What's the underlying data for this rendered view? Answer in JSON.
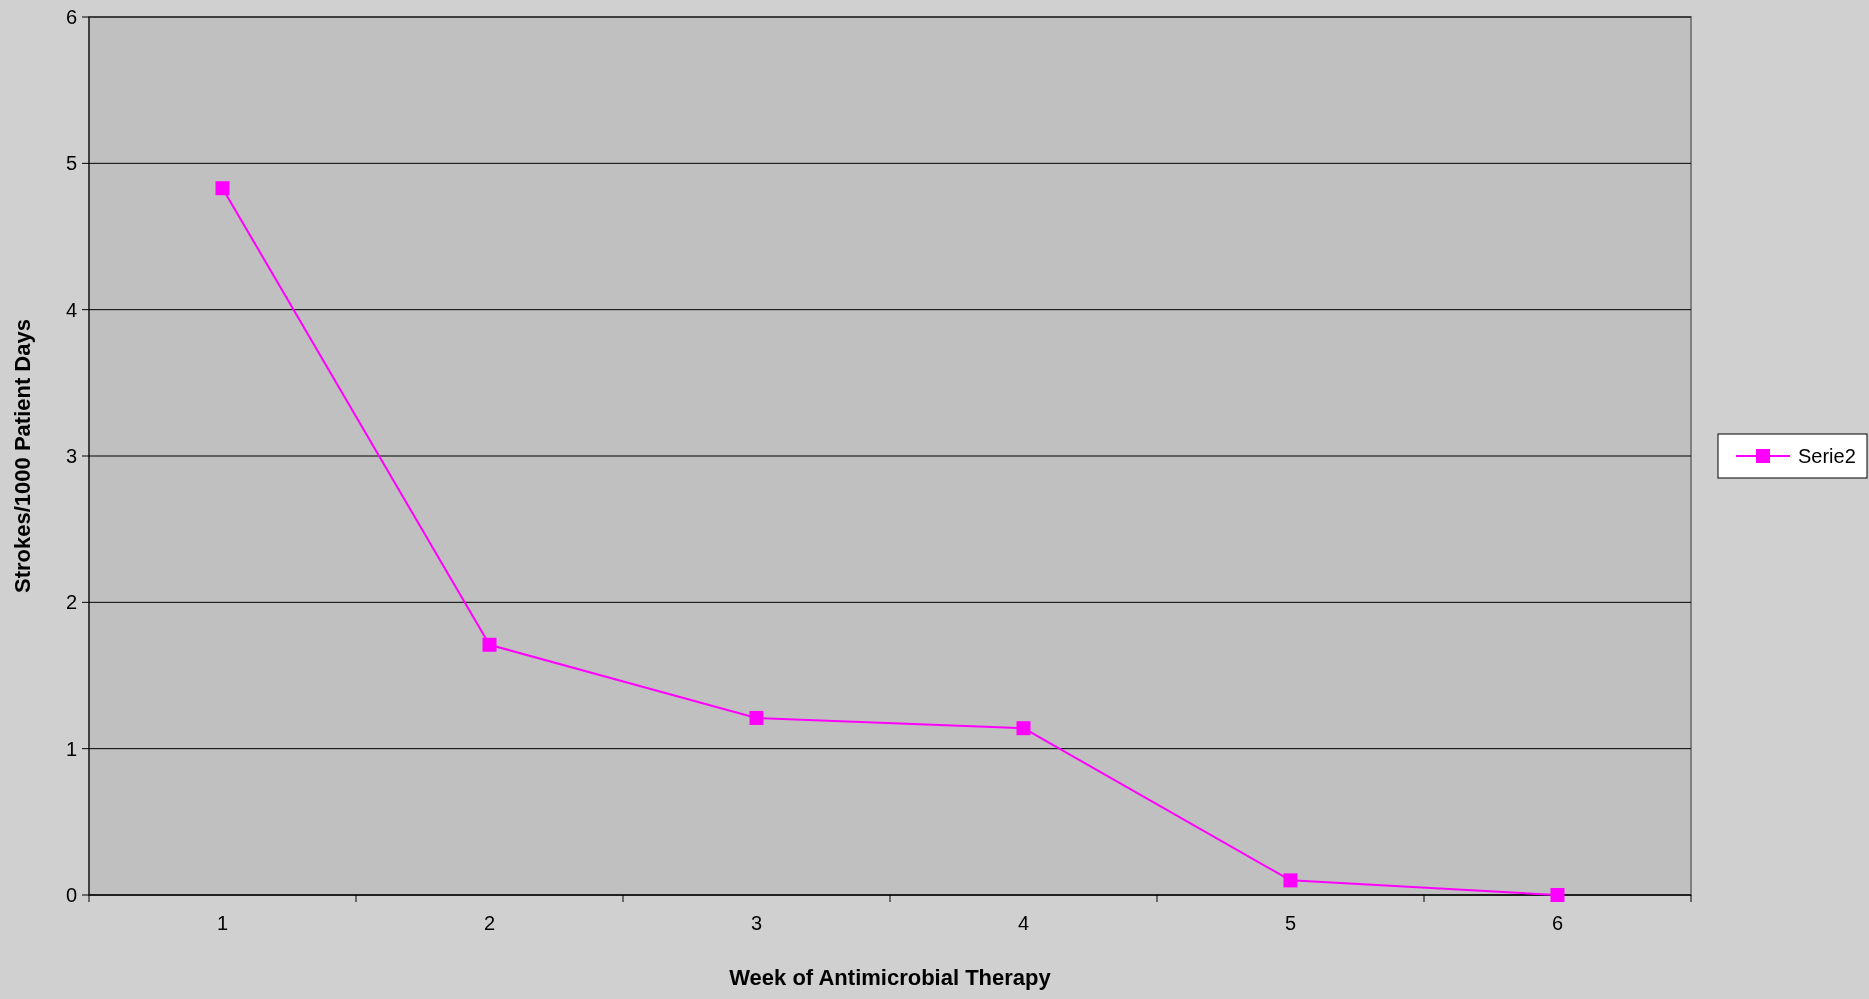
{
  "chart_data": {
    "type": "line",
    "xlabel": "Week of Antimicrobial Therapy",
    "ylabel": "Strokes/1000 Patient Days",
    "categories": [
      "1",
      "2",
      "3",
      "4",
      "5",
      "6"
    ],
    "series": [
      {
        "name": "Serie2",
        "color": "#ff00ff",
        "values": [
          4.83,
          1.71,
          1.21,
          1.14,
          0.1,
          0
        ]
      }
    ],
    "ylim": [
      0,
      6
    ],
    "yticks": [
      0,
      1,
      2,
      3,
      4,
      5,
      6
    ],
    "grid": "y",
    "legend": "right",
    "marker": "square"
  }
}
